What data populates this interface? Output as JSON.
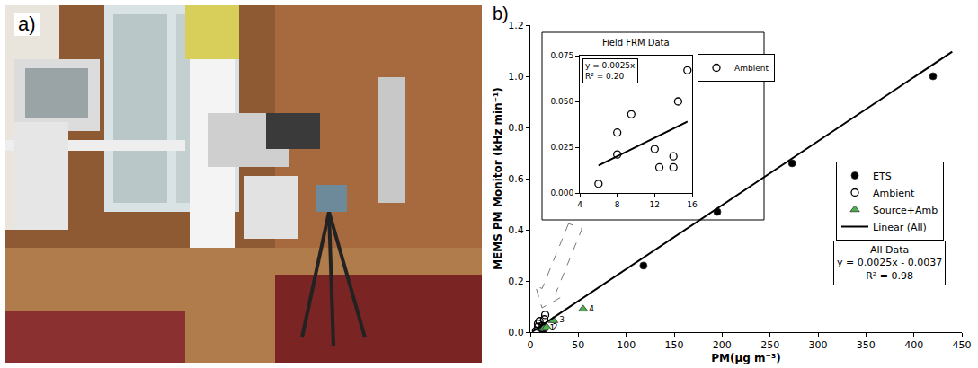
{
  "photo": {
    "label": "a)"
  },
  "chart_data": [
    {
      "label": "b)",
      "type": "scatter",
      "x_label": "PM(µg m⁻³)",
      "y_label": "MEMS PM Monitor (kHz min⁻¹)",
      "xlim": [
        0,
        450
      ],
      "xticks": [
        0,
        50,
        100,
        150,
        200,
        250,
        300,
        350,
        400,
        450
      ],
      "ylim": [
        0,
        1.2
      ],
      "yticks": [
        {
          "value": 0,
          "label": "0.0"
        },
        0.2,
        0.4,
        0.6,
        0.8,
        {
          "value": 1,
          "label": "1.0"
        },
        1.2
      ],
      "grid": false,
      "legend": "right",
      "series": [
        {
          "name": "ETS",
          "type": "scatter",
          "color": "#000000",
          "marker": "circle",
          "x": [
            118,
            195,
            273,
            420
          ],
          "values": [
            0.26,
            0.47,
            0.66,
            1.0
          ]
        },
        {
          "name": "Ambient",
          "type": "scatter",
          "color": "#000000",
          "marker": "circle-open",
          "x": [
            6,
            8,
            8,
            9.5,
            12,
            12.5,
            14,
            14,
            14.5,
            15.5
          ],
          "values": [
            0.005,
            0.021,
            0.033,
            0.043,
            0.024,
            0.014,
            0.014,
            0.02,
            0.05,
            0.067
          ]
        },
        {
          "name": "Source+Amb",
          "type": "scatter",
          "color": "#4caf50",
          "marker": "triangle-up",
          "x": [
            14,
            17,
            24,
            55
          ],
          "values": [
            0.015,
            0.02,
            0.045,
            0.09
          ],
          "labels": [
            "1",
            "2",
            "3",
            "4"
          ]
        },
        {
          "name": "Linear (All)",
          "type": "line",
          "color": "#000000",
          "line_style": "solid",
          "x": [
            2,
            440
          ],
          "values": [
            0.0013,
            1.0963
          ]
        }
      ],
      "annotations": [
        "All Data\ny = 0.0025x - 0.0037\nR² = 0.98"
      ]
    },
    {
      "title": "Field FRM Data",
      "type": "scatter",
      "xlim": [
        4,
        16
      ],
      "xticks": [
        4,
        8,
        12,
        16
      ],
      "ylim": [
        0,
        0.075
      ],
      "yticks": [
        {
          "value": 0,
          "label": "0.000"
        },
        0.025,
        {
          "value": 0.05,
          "label": "0.050"
        },
        0.075
      ],
      "grid": false,
      "legend": "top right",
      "series": [
        {
          "name": "Ambient",
          "type": "scatter",
          "color": "#000000",
          "marker": "circle-open",
          "x": [
            6,
            8,
            8,
            9.5,
            12,
            12.5,
            14,
            14,
            14.5,
            15.5
          ],
          "values": [
            0.005,
            0.021,
            0.033,
            0.043,
            0.024,
            0.014,
            0.014,
            0.02,
            0.05,
            0.067
          ]
        },
        {
          "type": "line",
          "color": "#000000",
          "line_style": "solid",
          "x": [
            6,
            15.5
          ],
          "values": [
            0.015,
            0.039
          ]
        }
      ],
      "annotations": [
        "y = 0.0025x\nR² = 0.20"
      ]
    }
  ]
}
